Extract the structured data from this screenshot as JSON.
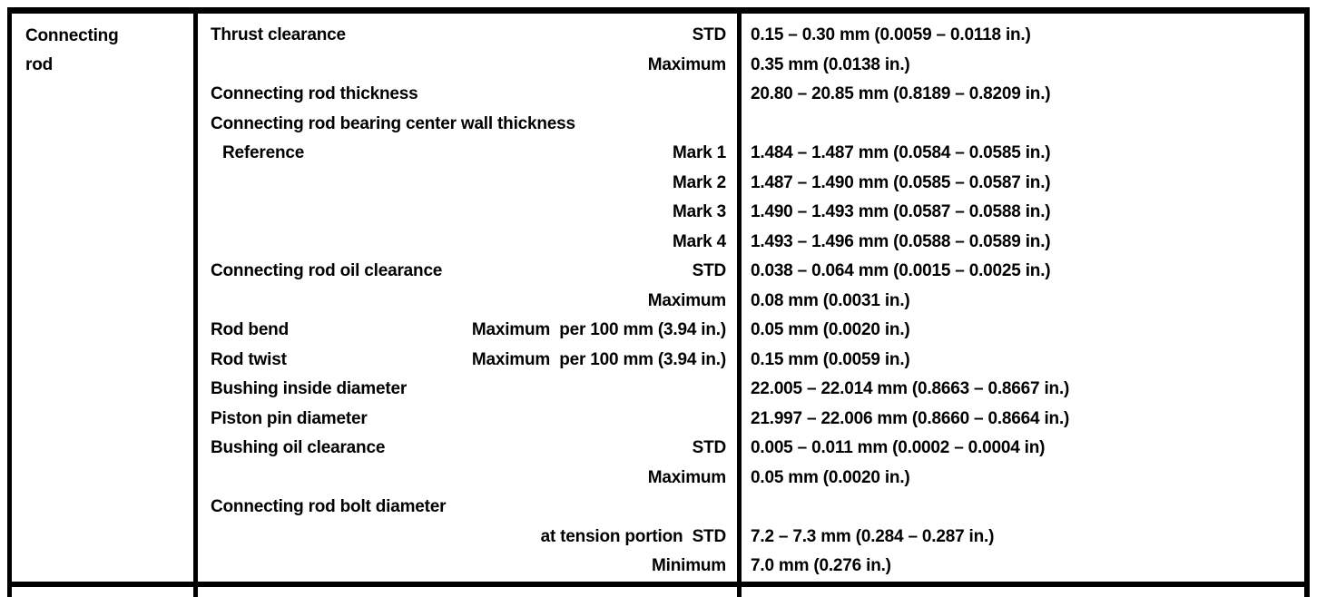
{
  "component": {
    "label": "Connecting rod"
  },
  "rows": [
    {
      "name": "Thrust clearance",
      "qualifier": "STD",
      "value": "0.15 – 0.30 mm (0.0059 – 0.0118 in.)"
    },
    {
      "name": "",
      "qualifier": "Maximum",
      "value": "0.35 mm (0.0138 in.)"
    },
    {
      "name": "Connecting rod thickness",
      "qualifier": "",
      "value": "20.80 – 20.85 mm (0.8189 – 0.8209 in.)"
    },
    {
      "name": "Connecting rod bearing center wall thickness",
      "qualifier": "",
      "value": ""
    },
    {
      "name": "Reference",
      "indent": true,
      "qualifier": "Mark 1",
      "value": "1.484 – 1.487 mm (0.0584 – 0.0585 in.)"
    },
    {
      "name": "",
      "qualifier": "Mark 2",
      "value": "1.487 – 1.490 mm (0.0585 – 0.0587 in.)"
    },
    {
      "name": "",
      "qualifier": "Mark 3",
      "value": "1.490 – 1.493 mm (0.0587 – 0.0588 in.)"
    },
    {
      "name": "",
      "qualifier": "Mark 4",
      "value": "1.493 – 1.496 mm (0.0588 – 0.0589 in.)"
    },
    {
      "name": "Connecting rod oil clearance",
      "qualifier": "STD",
      "value": "0.038 – 0.064 mm (0.0015 – 0.0025 in.)"
    },
    {
      "name": "",
      "qualifier": "Maximum",
      "value": "0.08 mm (0.0031 in.)"
    },
    {
      "name": "Rod bend",
      "qualifier": "Maximum  per 100 mm (3.94 in.)",
      "value": "0.05 mm (0.0020 in.)"
    },
    {
      "name": "Rod twist",
      "qualifier": "Maximum  per 100 mm (3.94 in.)",
      "value": "0.15 mm (0.0059 in.)"
    },
    {
      "name": "Bushing inside diameter",
      "qualifier": "",
      "value": "22.005 – 22.014 mm (0.8663 – 0.8667 in.)"
    },
    {
      "name": "Piston pin diameter",
      "qualifier": "",
      "value": "21.997 – 22.006 mm (0.8660 – 0.8664 in.)"
    },
    {
      "name": "Bushing oil clearance",
      "qualifier": "STD",
      "value": "0.005 – 0.011 mm (0.0002 – 0.0004 in)"
    },
    {
      "name": "",
      "qualifier": "Maximum",
      "value": "0.05 mm (0.0020 in.)"
    },
    {
      "name": "Connecting rod bolt diameter",
      "qualifier": "",
      "value": ""
    },
    {
      "name": "",
      "qualifier": "at tension portion  STD",
      "value": "7.2 – 7.3 mm (0.284 – 0.287 in.)"
    },
    {
      "name": "",
      "qualifier": "Minimum",
      "value": "7.0 mm (0.276 in.)"
    }
  ]
}
